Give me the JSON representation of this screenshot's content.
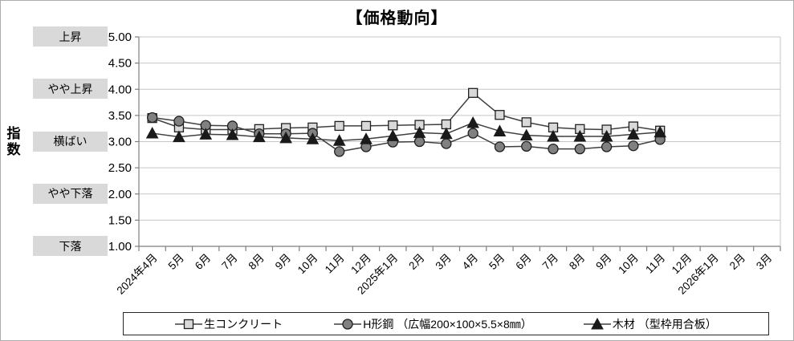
{
  "title": "【価格動向】",
  "y_axis": {
    "label": "指数",
    "ticks": [
      "5.00",
      "4.50",
      "4.00",
      "3.50",
      "3.00",
      "2.50",
      "2.00",
      "1.50",
      "1.00"
    ]
  },
  "level_labels": [
    {
      "text": "上昇",
      "value": 5.0
    },
    {
      "text": "やや上昇",
      "value": 4.0
    },
    {
      "text": "横ばい",
      "value": 3.0
    },
    {
      "text": "やや下落",
      "value": 2.0
    },
    {
      "text": "下落",
      "value": 1.0
    }
  ],
  "colors": {
    "grid": "#c6c6c6",
    "axis": "#7f7f7f",
    "line": "#3f3f3f",
    "label_box_bg": "#d9d9d9",
    "square_fill": "#d9d9d9",
    "circle_fill": "#808080",
    "triangle_fill": "#1a1a1a",
    "marker_stroke": "#1f1f1f"
  },
  "chart_data": {
    "type": "line",
    "title": "【価格動向】",
    "xlabel": "",
    "ylabel": "指数",
    "ylim": [
      1.0,
      5.0
    ],
    "ytick_step": 0.5,
    "grid": true,
    "legend_position": "bottom",
    "categories": [
      "2024年4月",
      "5月",
      "6月",
      "7月",
      "8月",
      "9月",
      "10月",
      "11月",
      "12月",
      "2025年1月",
      "2月",
      "3月",
      "4月",
      "5月",
      "6月",
      "7月",
      "8月",
      "9月",
      "10月",
      "11月",
      "12月",
      "2026年1月",
      "2月",
      "3月"
    ],
    "series": [
      {
        "name": "生コンクリート",
        "marker": "square",
        "values": [
          3.45,
          3.27,
          3.23,
          3.23,
          3.24,
          3.26,
          3.27,
          3.3,
          3.3,
          3.31,
          3.32,
          3.33,
          3.93,
          3.51,
          3.37,
          3.27,
          3.24,
          3.23,
          3.29,
          3.21,
          null,
          null,
          null,
          null
        ]
      },
      {
        "name": "H形鋼 （広幅200×100×5.5×8㎜）",
        "marker": "circle",
        "values": [
          3.46,
          3.39,
          3.31,
          3.3,
          3.15,
          3.15,
          3.16,
          2.81,
          2.9,
          2.99,
          3.0,
          2.96,
          3.16,
          2.9,
          2.91,
          2.86,
          2.86,
          2.9,
          2.92,
          3.04,
          null,
          null,
          null,
          null
        ]
      },
      {
        "name": "木材 （型枠用合板）",
        "marker": "triangle",
        "values": [
          3.16,
          3.09,
          3.14,
          3.13,
          3.09,
          3.07,
          3.05,
          3.02,
          3.05,
          3.11,
          3.17,
          3.15,
          3.36,
          3.2,
          3.12,
          3.1,
          3.1,
          3.1,
          3.14,
          3.18,
          null,
          null,
          null,
          null
        ]
      }
    ]
  }
}
